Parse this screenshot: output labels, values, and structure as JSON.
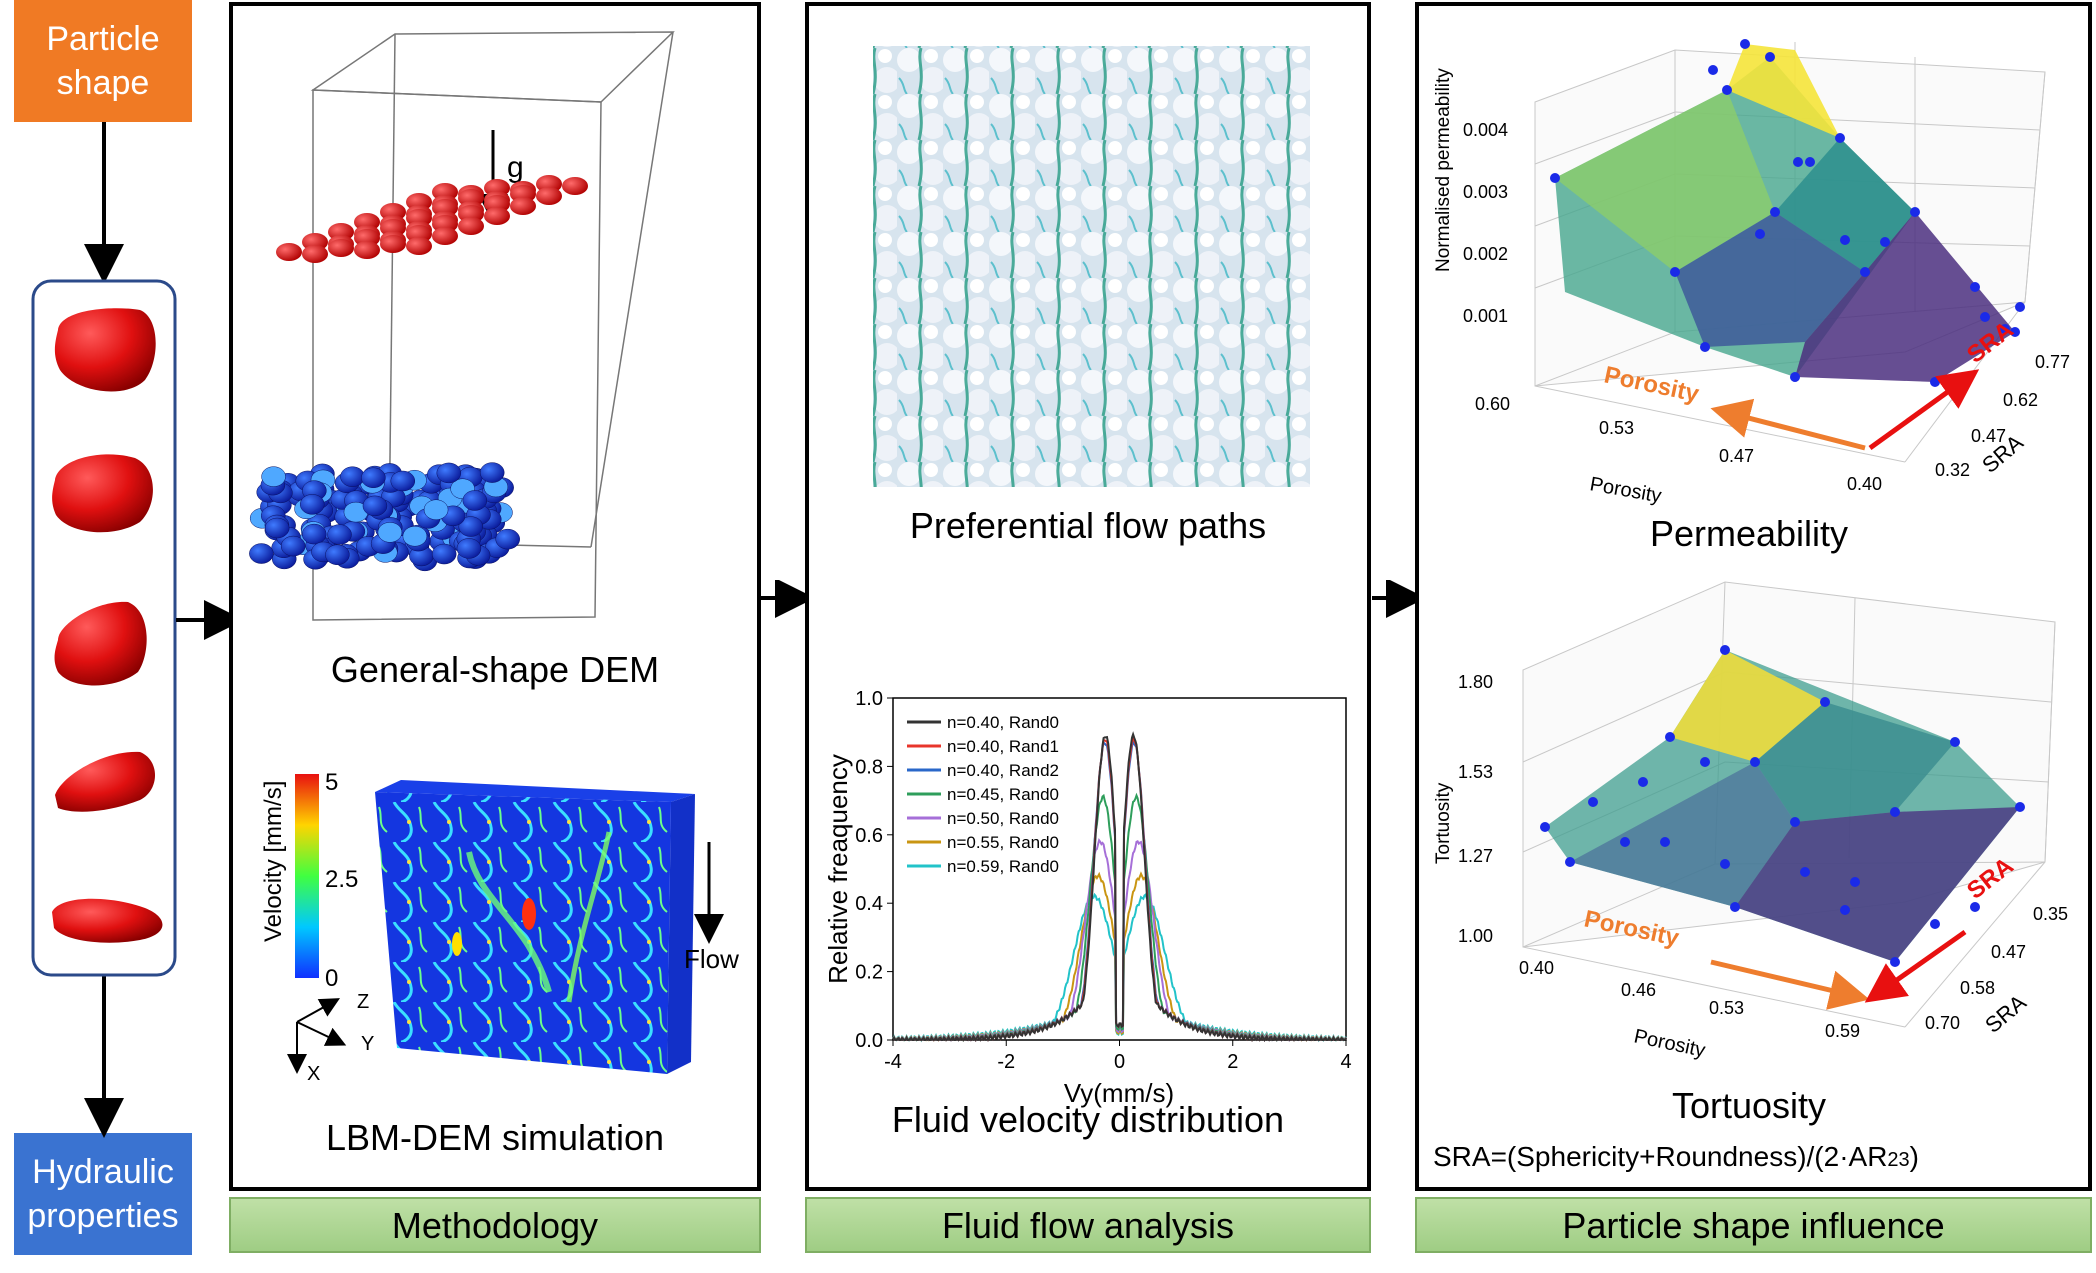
{
  "sidebar": {
    "top_box": {
      "line1": "Particle",
      "line2": "shape"
    },
    "bottom_box": {
      "line1": "Hydraulic",
      "line2": "properties"
    }
  },
  "methodology": {
    "gravity_label": "g",
    "dem_caption": "General-shape DEM",
    "lbm_caption": "LBM-DEM simulation",
    "colorbar": {
      "title": "Velocity [mm/s]",
      "max": "5",
      "mid": "2.5",
      "min": "0"
    },
    "flow_label": "Flow",
    "axes": {
      "z": "Z",
      "y": "Y",
      "x": "X"
    },
    "bar_label": "Methodology"
  },
  "flow_analysis": {
    "paths_caption": "Preferential flow paths",
    "dist_caption": "Fluid velocity distribution",
    "bar_label": "Fluid flow analysis"
  },
  "shape_influence": {
    "perm_caption": "Permeability",
    "tort_caption": "Tortuosity",
    "sra_formula": "SRA=(Sphericity+Roundness)/(2·AR",
    "sra_formula_sub": "23",
    "sra_formula_end": ")",
    "bar_label": "Particle shape influence",
    "perm_plot": {
      "zlabel": "Normalised permeability",
      "zticks": [
        "0.004",
        "0.003",
        "0.002",
        "0.001"
      ],
      "porosity_ticks": [
        "0.60",
        "0.53",
        "0.47",
        "0.40"
      ],
      "sra_ticks": [
        "0.77",
        "0.62",
        "0.47",
        "0.32"
      ],
      "xlabel": "Porosity",
      "ylabel": "SRA",
      "arrow_porosity": "Porosity",
      "arrow_sra": "SRA"
    },
    "tort_plot": {
      "zlabel": "Tortuosity",
      "zticks": [
        "1.80",
        "1.53",
        "1.27",
        "1.00"
      ],
      "porosity_ticks": [
        "0.40",
        "0.46",
        "0.53",
        "0.59"
      ],
      "sra_ticks": [
        "0.35",
        "0.47",
        "0.58",
        "0.70"
      ],
      "xlabel": "Porosity",
      "ylabel": "SRA",
      "arrow_porosity": "Porosity",
      "arrow_sra": "SRA"
    }
  },
  "chart_data": {
    "type": "line",
    "xlabel": "Vy(mm/s)",
    "ylabel": "Relative freaquency",
    "xlim": [
      -4,
      4
    ],
    "ylim": [
      0,
      1.0
    ],
    "xticks": [
      "-4",
      "-2",
      "0",
      "2",
      "4"
    ],
    "yticks": [
      "0.0",
      "0.2",
      "0.4",
      "0.6",
      "0.8",
      "1.0"
    ],
    "legend_position": "top-left",
    "series": [
      {
        "name": "n=0.40, Rand0",
        "color": "#333333",
        "peak": 0.89,
        "width": 0.55
      },
      {
        "name": "n=0.40, Rand1",
        "color": "#e8352b",
        "peak": 0.88,
        "width": 0.56
      },
      {
        "name": "n=0.40, Rand2",
        "color": "#2a67c9",
        "peak": 0.87,
        "width": 0.57
      },
      {
        "name": "n=0.45, Rand0",
        "color": "#2e9e5b",
        "peak": 0.71,
        "width": 0.65
      },
      {
        "name": "n=0.50, Rand0",
        "color": "#a66fd8",
        "peak": 0.58,
        "width": 0.75
      },
      {
        "name": "n=0.55, Rand0",
        "color": "#c99512",
        "peak": 0.48,
        "width": 0.85
      },
      {
        "name": "n=0.59, Rand0",
        "color": "#22c3c9",
        "peak": 0.42,
        "width": 1.0
      }
    ]
  }
}
